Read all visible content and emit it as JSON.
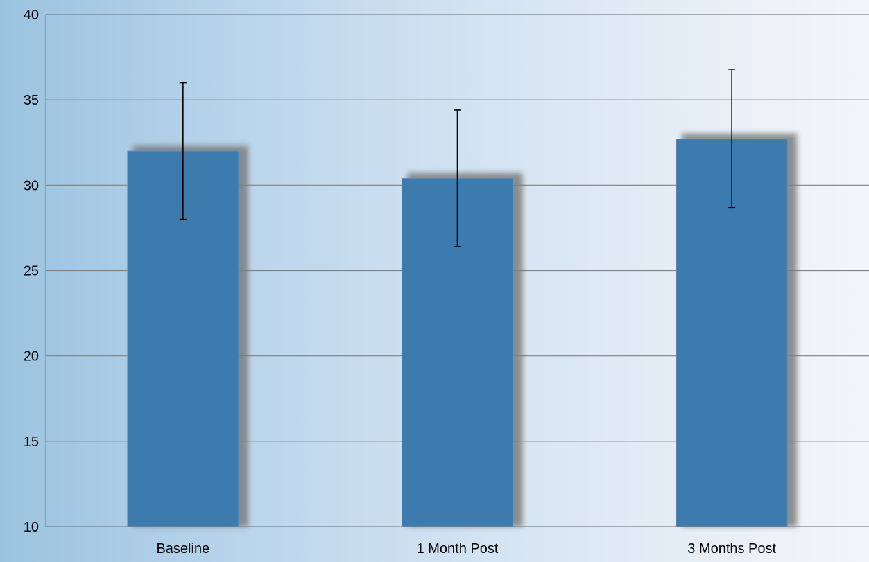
{
  "chart_data": {
    "type": "bar",
    "title": "",
    "xlabel": "",
    "ylabel": "",
    "categories": [
      "Baseline",
      "1 Month Post",
      "3 Months Post"
    ],
    "values": [
      32.0,
      30.4,
      32.7
    ],
    "error_bars": [
      {
        "low": 28.0,
        "high": 36.0
      },
      {
        "low": 26.4,
        "high": 34.4
      },
      {
        "low": 28.7,
        "high": 36.8
      }
    ],
    "ylim": [
      10,
      40
    ],
    "yticks": [
      "10",
      "15",
      "20",
      "25",
      "30",
      "35",
      "40"
    ],
    "grid": true,
    "legend": "none",
    "colors": {
      "bar": "#3d7aae",
      "bar_edge": "#5b8fbe",
      "shadow": "#7d7d7d",
      "gridline": "#808080",
      "axis": "#808080",
      "errorbar": "#000000"
    }
  }
}
